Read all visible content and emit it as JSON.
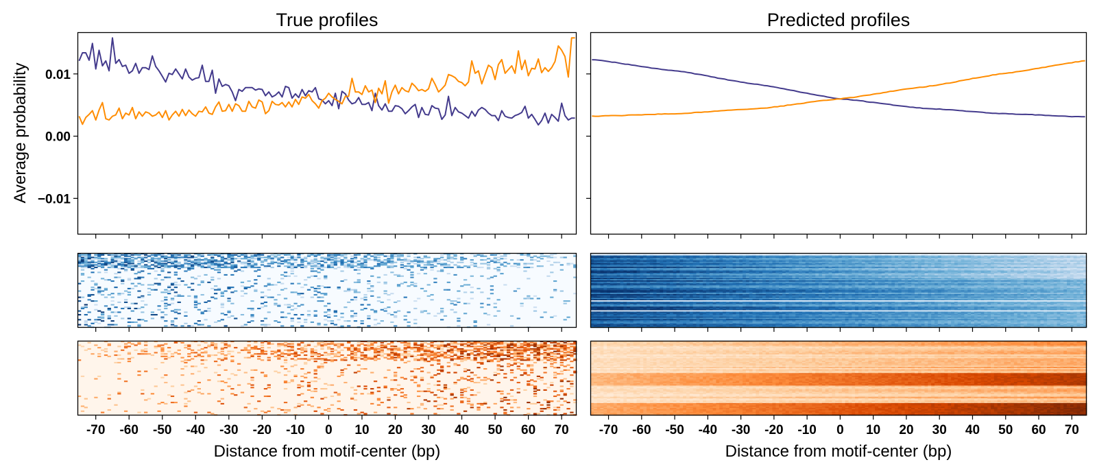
{
  "chart_data": [
    {
      "type": "line",
      "title": "True profiles",
      "xlabel": "Distance from motif-center (bp)",
      "ylabel": "Average probability",
      "xlim": [
        -75.5,
        74.5
      ],
      "ylim": [
        -0.0158,
        0.0167
      ],
      "yticks": [
        -0.01,
        0.0,
        0.01
      ],
      "ytick_labels": [
        "−0.01",
        "0.00",
        "0.01"
      ],
      "xticks": [
        -70,
        -60,
        -50,
        -40,
        -30,
        -20,
        -10,
        0,
        10,
        20,
        30,
        40,
        50,
        60,
        70
      ],
      "xtick_labels": [
        "-70",
        "-60",
        "-50",
        "-40",
        "-30",
        "-20",
        "-10",
        "0",
        "10",
        "20",
        "30",
        "40",
        "50",
        "60",
        "70"
      ],
      "x_start": -75,
      "series": [
        {
          "name": "purple",
          "color": "#433a8c",
          "values": [
            0.0121,
            0.0134,
            0.0134,
            0.0122,
            0.0149,
            0.0108,
            0.0138,
            0.0113,
            0.0121,
            0.0105,
            0.0158,
            0.0117,
            0.0123,
            0.0112,
            0.0114,
            0.0101,
            0.0105,
            0.0117,
            0.0101,
            0.011,
            0.011,
            0.0107,
            0.0129,
            0.0112,
            0.0105,
            0.0096,
            0.0087,
            0.0101,
            0.0099,
            0.0108,
            0.01,
            0.0092,
            0.0108,
            0.0095,
            0.009,
            0.0093,
            0.0094,
            0.0114,
            0.0088,
            0.0088,
            0.0106,
            0.0069,
            0.0092,
            0.008,
            0.0083,
            0.0081,
            0.0071,
            0.0057,
            0.0075,
            0.0072,
            0.0078,
            0.0078,
            0.0078,
            0.0074,
            0.0076,
            0.0075,
            0.0065,
            0.0071,
            0.0063,
            0.0066,
            0.0071,
            0.0063,
            0.008,
            0.0078,
            0.0061,
            0.0068,
            0.0062,
            0.0075,
            0.0065,
            0.0073,
            0.0071,
            0.0078,
            0.006,
            0.0058,
            0.0052,
            0.0057,
            0.0049,
            0.0069,
            0.0044,
            0.0072,
            0.0068,
            0.0058,
            0.0052,
            0.0054,
            0.0062,
            0.0051,
            0.0051,
            0.0054,
            0.0041,
            0.0069,
            0.0049,
            0.0042,
            0.0052,
            0.004,
            0.004,
            0.0049,
            0.0048,
            0.0044,
            0.0036,
            0.0041,
            0.0047,
            0.0051,
            0.003,
            0.0046,
            0.0035,
            0.0034,
            0.0049,
            0.0045,
            0.0044,
            0.0027,
            0.0034,
            0.0064,
            0.0033,
            0.0046,
            0.0039,
            0.0037,
            0.0033,
            0.0029,
            0.004,
            0.0032,
            0.0042,
            0.0046,
            0.0043,
            0.0037,
            0.0033,
            0.0033,
            0.0025,
            0.0041,
            0.0032,
            0.003,
            0.0029,
            0.0033,
            0.0035,
            0.0038,
            0.0048,
            0.0029,
            0.0035,
            0.0027,
            0.0018,
            0.0025,
            0.0037,
            0.0021,
            0.0035,
            0.003,
            0.0024,
            0.0053,
            0.0033,
            0.0026,
            0.0029,
            0.0029
          ]
        },
        {
          "name": "orange",
          "color": "#ff8c00",
          "values": [
            0.0032,
            0.0019,
            0.003,
            0.0035,
            0.0041,
            0.0026,
            0.0042,
            0.0054,
            0.0028,
            0.0026,
            0.0032,
            0.0034,
            0.0045,
            0.0028,
            0.0037,
            0.0034,
            0.0046,
            0.0028,
            0.0039,
            0.0032,
            0.0039,
            0.0037,
            0.0032,
            0.0034,
            0.0039,
            0.003,
            0.0041,
            0.0026,
            0.0034,
            0.004,
            0.0032,
            0.0043,
            0.0033,
            0.0042,
            0.0036,
            0.0032,
            0.004,
            0.0039,
            0.0047,
            0.0037,
            0.0035,
            0.0047,
            0.0055,
            0.004,
            0.0041,
            0.0051,
            0.004,
            0.0052,
            0.0049,
            0.004,
            0.004,
            0.0056,
            0.0047,
            0.0045,
            0.0058,
            0.0055,
            0.0036,
            0.0041,
            0.0056,
            0.0051,
            0.005,
            0.0054,
            0.0047,
            0.0055,
            0.0047,
            0.0059,
            0.0051,
            0.0063,
            0.0061,
            0.0067,
            0.0057,
            0.0052,
            0.0045,
            0.0057,
            0.0061,
            0.0069,
            0.0063,
            0.0059,
            0.0056,
            0.0052,
            0.0064,
            0.0064,
            0.0093,
            0.0071,
            0.0071,
            0.0067,
            0.0081,
            0.0071,
            0.0074,
            0.0054,
            0.0077,
            0.0068,
            0.0089,
            0.0053,
            0.0071,
            0.0082,
            0.0068,
            0.0078,
            0.0073,
            0.0071,
            0.0085,
            0.008,
            0.0073,
            0.0075,
            0.0072,
            0.0076,
            0.0093,
            0.0083,
            0.0071,
            0.0076,
            0.0082,
            0.0099,
            0.0097,
            0.0094,
            0.0088,
            0.0086,
            0.0081,
            0.0087,
            0.0121,
            0.0101,
            0.0105,
            0.0084,
            0.0099,
            0.0114,
            0.011,
            0.0091,
            0.0115,
            0.0123,
            0.0101,
            0.0107,
            0.0113,
            0.0101,
            0.0137,
            0.0107,
            0.0122,
            0.0097,
            0.0109,
            0.0108,
            0.0124,
            0.0102,
            0.011,
            0.0104,
            0.011,
            0.012,
            0.0145,
            0.0138,
            0.0128,
            0.0095,
            0.0158,
            0.0158
          ]
        }
      ]
    },
    {
      "type": "line",
      "title": "Predicted profiles",
      "xlabel": "Distance from motif-center (bp)",
      "ylabel": "",
      "xlim": [
        -75.5,
        74.5
      ],
      "ylim": [
        -0.0158,
        0.0167
      ],
      "yticks": [
        -0.01,
        0.0,
        0.01
      ],
      "xticks": [
        -70,
        -60,
        -50,
        -40,
        -30,
        -20,
        -10,
        0,
        10,
        20,
        30,
        40,
        50,
        60,
        70
      ],
      "xtick_labels": [
        "-70",
        "-60",
        "-50",
        "-40",
        "-30",
        "-20",
        "-10",
        "0",
        "10",
        "20",
        "30",
        "40",
        "50",
        "60",
        "70"
      ],
      "x_start": -75,
      "series": [
        {
          "name": "purple",
          "color": "#433a8c",
          "keypoints_x": [
            -75,
            -50,
            -25,
            0,
            25,
            50,
            74
          ],
          "keypoints_y": [
            0.0123,
            0.0105,
            0.0083,
            0.006,
            0.0045,
            0.0036,
            0.0031
          ]
        },
        {
          "name": "orange",
          "color": "#ff8c00",
          "keypoints_x": [
            -75,
            -50,
            -25,
            0,
            25,
            50,
            74
          ],
          "keypoints_y": [
            0.0032,
            0.0036,
            0.0044,
            0.006,
            0.0079,
            0.0101,
            0.0121
          ]
        }
      ]
    },
    {
      "type": "heatmap",
      "name": "true-blue",
      "colormap": [
        "#f7fbff",
        "#c6dbef",
        "#6baed6",
        "#2171b5",
        "#08306b"
      ],
      "pattern": "sparse, denser on left"
    },
    {
      "type": "heatmap",
      "name": "pred-blue",
      "colormap": [
        "#f7fbff",
        "#c6dbef",
        "#6baed6",
        "#2171b5",
        "#08306b"
      ],
      "pattern": "dense, fading left to right"
    },
    {
      "type": "heatmap",
      "name": "true-orange",
      "colormap": [
        "#fff5eb",
        "#fdd0a2",
        "#fd8d3c",
        "#d94801",
        "#7f2704"
      ],
      "pattern": "sparse, denser on right"
    },
    {
      "type": "heatmap",
      "name": "pred-orange",
      "colormap": [
        "#fff5eb",
        "#fdd0a2",
        "#fd8d3c",
        "#d94801",
        "#7f2704"
      ],
      "pattern": "dense, increasing left to right"
    }
  ]
}
